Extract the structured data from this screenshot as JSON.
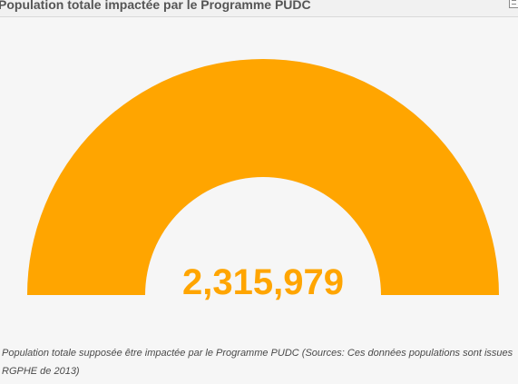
{
  "header": {
    "title": "Population totale impactée par le Programme PUDC"
  },
  "chart_data": {
    "type": "gauge",
    "value": 2315979,
    "value_label": "2,315,979",
    "fill_fraction": 1.0,
    "color": "#ffa500",
    "title": "Population totale impactée par le Programme PUDC"
  },
  "caption": {
    "line1": "Population totale supposée être impactée par le Programme PUDC (Sources: Ces données populations sont issues d",
    "line2": "RGPHE de 2013)"
  },
  "colors": {
    "accent": "#ffa500",
    "background": "#f6f6f6",
    "title_text": "#555555"
  },
  "icons": {
    "expand": "expand-icon"
  }
}
